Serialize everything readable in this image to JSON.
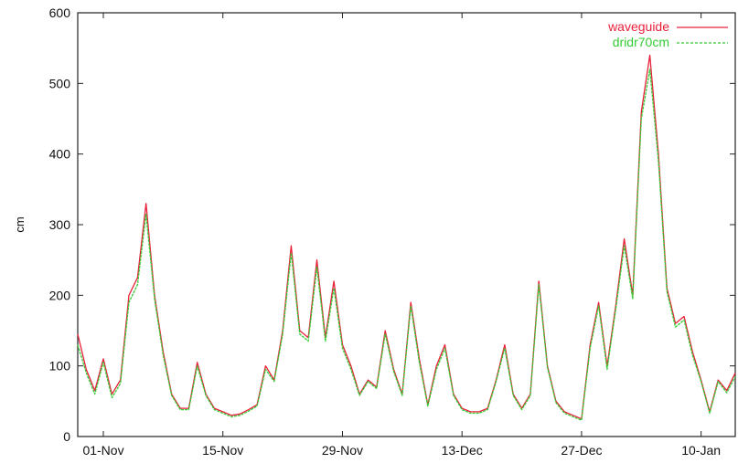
{
  "chart_data": {
    "type": "line",
    "title": "",
    "xlabel": "",
    "ylabel": "cm",
    "xlim": [
      "2012-10-29",
      "2013-01-14"
    ],
    "ylim": [
      0,
      600
    ],
    "yticks": [
      0,
      100,
      200,
      300,
      400,
      500,
      600
    ],
    "xticks": [
      {
        "date": "2012-11-01",
        "label": "01-Nov"
      },
      {
        "date": "2012-11-15",
        "label": "15-Nov"
      },
      {
        "date": "2012-11-29",
        "label": "29-Nov"
      },
      {
        "date": "2012-12-13",
        "label": "13-Dec"
      },
      {
        "date": "2012-12-27",
        "label": "27-Dec"
      },
      {
        "date": "2013-01-10",
        "label": "10-Jan"
      }
    ],
    "grid": false,
    "legend_position": "top-right",
    "series": [
      {
        "name": "waveguide",
        "color": "#e8203a",
        "dash": "solid",
        "points": [
          [
            "2012-10-29",
            145
          ],
          [
            "2012-10-30",
            95
          ],
          [
            "2012-10-31",
            65
          ],
          [
            "2012-11-01",
            110
          ],
          [
            "2012-11-02",
            60
          ],
          [
            "2012-11-03",
            80
          ],
          [
            "2012-11-04",
            200
          ],
          [
            "2012-11-05",
            225
          ],
          [
            "2012-11-06",
            330
          ],
          [
            "2012-11-07",
            200
          ],
          [
            "2012-11-08",
            120
          ],
          [
            "2012-11-09",
            60
          ],
          [
            "2012-11-10",
            40
          ],
          [
            "2012-11-11",
            40
          ],
          [
            "2012-11-12",
            105
          ],
          [
            "2012-11-13",
            60
          ],
          [
            "2012-11-14",
            40
          ],
          [
            "2012-11-15",
            35
          ],
          [
            "2012-11-16",
            30
          ],
          [
            "2012-11-17",
            32
          ],
          [
            "2012-11-18",
            38
          ],
          [
            "2012-11-19",
            45
          ],
          [
            "2012-11-20",
            100
          ],
          [
            "2012-11-21",
            80
          ],
          [
            "2012-11-22",
            150
          ],
          [
            "2012-11-23",
            270
          ],
          [
            "2012-11-24",
            150
          ],
          [
            "2012-11-25",
            140
          ],
          [
            "2012-11-26",
            250
          ],
          [
            "2012-11-27",
            140
          ],
          [
            "2012-11-28",
            220
          ],
          [
            "2012-11-29",
            130
          ],
          [
            "2012-11-30",
            100
          ],
          [
            "2012-12-01",
            60
          ],
          [
            "2012-12-02",
            80
          ],
          [
            "2012-12-03",
            70
          ],
          [
            "2012-12-04",
            150
          ],
          [
            "2012-12-05",
            95
          ],
          [
            "2012-12-06",
            60
          ],
          [
            "2012-12-07",
            190
          ],
          [
            "2012-12-08",
            110
          ],
          [
            "2012-12-09",
            45
          ],
          [
            "2012-12-10",
            100
          ],
          [
            "2012-12-11",
            130
          ],
          [
            "2012-12-12",
            60
          ],
          [
            "2012-12-13",
            40
          ],
          [
            "2012-12-14",
            35
          ],
          [
            "2012-12-15",
            35
          ],
          [
            "2012-12-16",
            40
          ],
          [
            "2012-12-17",
            80
          ],
          [
            "2012-12-18",
            130
          ],
          [
            "2012-12-19",
            60
          ],
          [
            "2012-12-20",
            40
          ],
          [
            "2012-12-21",
            60
          ],
          [
            "2012-12-22",
            220
          ],
          [
            "2012-12-23",
            100
          ],
          [
            "2012-12-24",
            50
          ],
          [
            "2012-12-25",
            35
          ],
          [
            "2012-12-26",
            30
          ],
          [
            "2012-12-27",
            25
          ],
          [
            "2012-12-28",
            130
          ],
          [
            "2012-12-29",
            190
          ],
          [
            "2012-12-30",
            100
          ],
          [
            "2012-12-31",
            185
          ],
          [
            "2013-01-01",
            280
          ],
          [
            "2013-01-02",
            200
          ],
          [
            "2013-01-03",
            460
          ],
          [
            "2013-01-04",
            540
          ],
          [
            "2013-01-05",
            400
          ],
          [
            "2013-01-06",
            210
          ],
          [
            "2013-01-07",
            160
          ],
          [
            "2013-01-08",
            170
          ],
          [
            "2013-01-09",
            120
          ],
          [
            "2013-01-10",
            80
          ],
          [
            "2013-01-11",
            35
          ],
          [
            "2013-01-12",
            80
          ],
          [
            "2013-01-13",
            65
          ],
          [
            "2013-01-14",
            90
          ]
        ]
      },
      {
        "name": "dridr70cm",
        "color": "#33cc33",
        "dash": "dashed",
        "points": [
          [
            "2012-10-29",
            130
          ],
          [
            "2012-10-30",
            90
          ],
          [
            "2012-10-31",
            60
          ],
          [
            "2012-11-01",
            105
          ],
          [
            "2012-11-02",
            55
          ],
          [
            "2012-11-03",
            75
          ],
          [
            "2012-11-04",
            190
          ],
          [
            "2012-11-05",
            215
          ],
          [
            "2012-11-06",
            315
          ],
          [
            "2012-11-07",
            195
          ],
          [
            "2012-11-08",
            115
          ],
          [
            "2012-11-09",
            58
          ],
          [
            "2012-11-10",
            38
          ],
          [
            "2012-11-11",
            38
          ],
          [
            "2012-11-12",
            100
          ],
          [
            "2012-11-13",
            58
          ],
          [
            "2012-11-14",
            38
          ],
          [
            "2012-11-15",
            33
          ],
          [
            "2012-11-16",
            28
          ],
          [
            "2012-11-17",
            30
          ],
          [
            "2012-11-18",
            36
          ],
          [
            "2012-11-19",
            43
          ],
          [
            "2012-11-20",
            95
          ],
          [
            "2012-11-21",
            78
          ],
          [
            "2012-11-22",
            145
          ],
          [
            "2012-11-23",
            260
          ],
          [
            "2012-11-24",
            145
          ],
          [
            "2012-11-25",
            135
          ],
          [
            "2012-11-26",
            240
          ],
          [
            "2012-11-27",
            135
          ],
          [
            "2012-11-28",
            210
          ],
          [
            "2012-11-29",
            125
          ],
          [
            "2012-11-30",
            95
          ],
          [
            "2012-12-01",
            58
          ],
          [
            "2012-12-02",
            78
          ],
          [
            "2012-12-03",
            68
          ],
          [
            "2012-12-04",
            145
          ],
          [
            "2012-12-05",
            92
          ],
          [
            "2012-12-06",
            58
          ],
          [
            "2012-12-07",
            185
          ],
          [
            "2012-12-08",
            105
          ],
          [
            "2012-12-09",
            43
          ],
          [
            "2012-12-10",
            95
          ],
          [
            "2012-12-11",
            125
          ],
          [
            "2012-12-12",
            58
          ],
          [
            "2012-12-13",
            38
          ],
          [
            "2012-12-14",
            33
          ],
          [
            "2012-12-15",
            33
          ],
          [
            "2012-12-16",
            38
          ],
          [
            "2012-12-17",
            78
          ],
          [
            "2012-12-18",
            125
          ],
          [
            "2012-12-19",
            58
          ],
          [
            "2012-12-20",
            38
          ],
          [
            "2012-12-21",
            58
          ],
          [
            "2012-12-22",
            215
          ],
          [
            "2012-12-23",
            98
          ],
          [
            "2012-12-24",
            48
          ],
          [
            "2012-12-25",
            33
          ],
          [
            "2012-12-26",
            28
          ],
          [
            "2012-12-27",
            23
          ],
          [
            "2012-12-28",
            125
          ],
          [
            "2012-12-29",
            185
          ],
          [
            "2012-12-30",
            95
          ],
          [
            "2012-12-31",
            180
          ],
          [
            "2013-01-01",
            270
          ],
          [
            "2013-01-02",
            195
          ],
          [
            "2013-01-03",
            450
          ],
          [
            "2013-01-04",
            520
          ],
          [
            "2013-01-05",
            390
          ],
          [
            "2013-01-06",
            205
          ],
          [
            "2013-01-07",
            155
          ],
          [
            "2013-01-08",
            165
          ],
          [
            "2013-01-09",
            115
          ],
          [
            "2013-01-10",
            78
          ],
          [
            "2013-01-11",
            33
          ],
          [
            "2013-01-12",
            78
          ],
          [
            "2013-01-13",
            62
          ],
          [
            "2013-01-14",
            85
          ]
        ]
      }
    ]
  }
}
